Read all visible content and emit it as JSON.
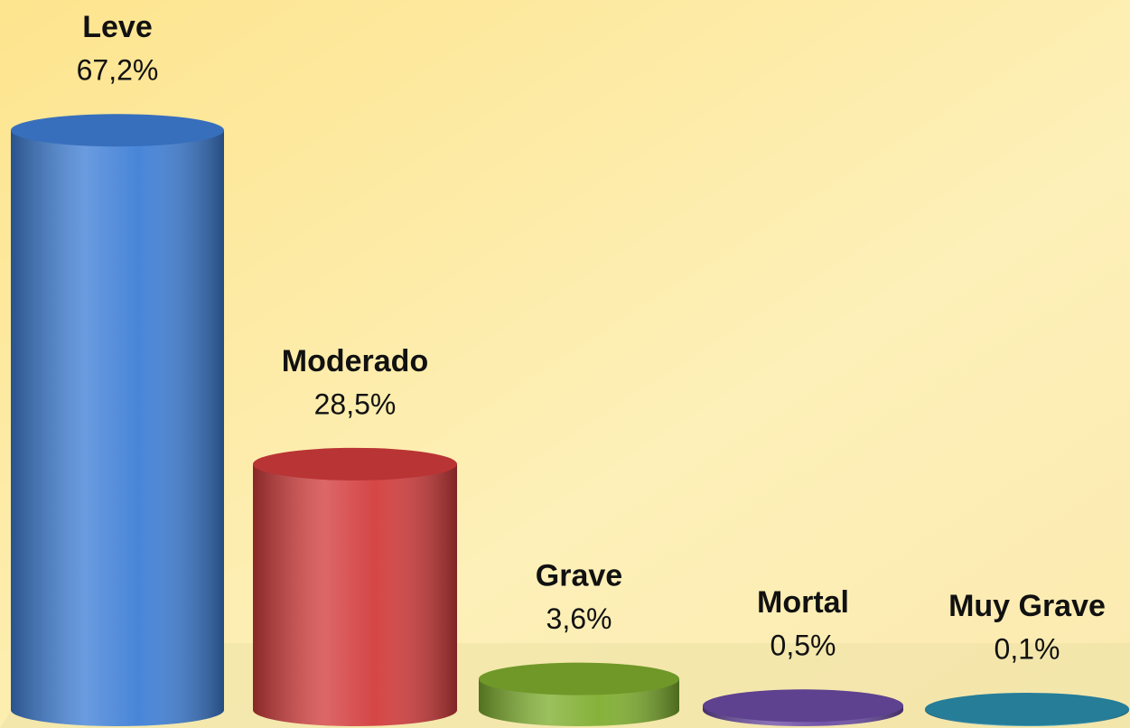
{
  "chart_data": {
    "type": "bar",
    "categories": [
      "Leve",
      "Moderado",
      "Grave",
      "Mortal",
      "Muy Grave"
    ],
    "values": [
      67.2,
      28.5,
      3.6,
      0.5,
      0.1
    ],
    "value_labels": [
      "67,2%",
      "28,5%",
      "3,6%",
      "0,5%",
      "0,1%"
    ],
    "colors": [
      "#3f7fd6",
      "#d33c3c",
      "#7fae2f",
      "#6b4ba3",
      "#2b8fae"
    ]
  }
}
